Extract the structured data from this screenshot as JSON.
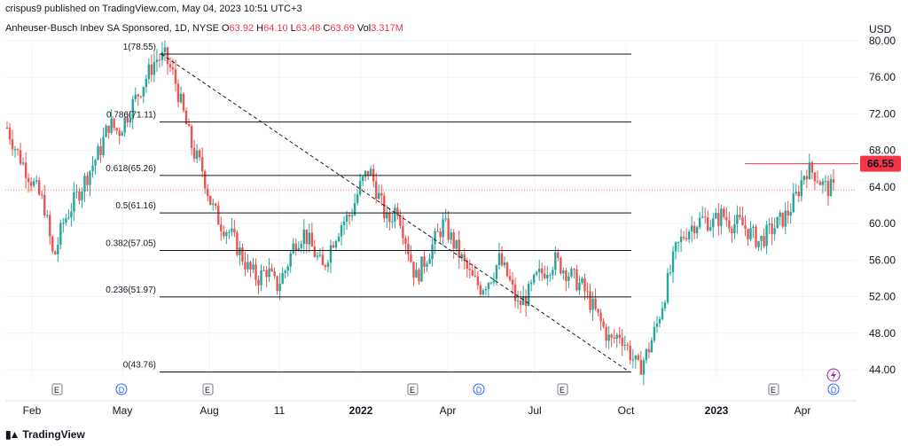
{
  "header": {
    "published": "crispus9 published on TradingView.com, May 04, 2023 10:51 UTC+3",
    "symbol": "Anheuser-Busch Inbev SA Sponsored, 1D, NYSE",
    "ohlc": [
      {
        "k": "O",
        "v": "63.92"
      },
      {
        "k": "H",
        "v": "64.10"
      },
      {
        "k": "L",
        "v": "63.48"
      },
      {
        "k": "C",
        "v": "63.69"
      },
      {
        "k": "Vol",
        "v": "3.317M"
      }
    ],
    "currency": "USD"
  },
  "footer": {
    "brand": "TradingView"
  },
  "colors": {
    "up": "#26a69a",
    "down": "#ef5350",
    "marker": "#f23645",
    "grid": "#f0f3fa"
  },
  "chart_data": {
    "type": "candlestick",
    "y_ticks": [
      80,
      76,
      72,
      68,
      64,
      60,
      56,
      52,
      48,
      44
    ],
    "y_tick_labels": [
      "80.00",
      "76.00",
      "72.00",
      "68.00",
      "64.00",
      "60.00",
      "56.00",
      "52.00",
      "48.00",
      "44.00"
    ],
    "ylim": [
      43.0,
      81.0
    ],
    "x_labels": [
      "Feb",
      "May",
      "Aug",
      "11",
      "2022",
      "Apr",
      "Jul",
      "Oct",
      "2023",
      "Apr"
    ],
    "x_label_bold": [
      "2022",
      "2023"
    ],
    "fib_levels": [
      {
        "label": "1(78.55)",
        "value": 78.55
      },
      {
        "label": "0.786(71.11)",
        "value": 71.11
      },
      {
        "label": "0.618(65.26)",
        "value": 65.26
      },
      {
        "label": "0.5(61.16)",
        "value": 61.16
      },
      {
        "label": "0.382(57.05)",
        "value": 57.05
      },
      {
        "label": "0.236(51.97)",
        "value": 51.97
      },
      {
        "label": "0(43.76)",
        "value": 43.76
      }
    ],
    "trend_line": {
      "from": 78.55,
      "to": 43.76
    },
    "horizontal_line": {
      "value": 66.55,
      "label": "66.55"
    },
    "last_price": 63.69,
    "events": [
      "E",
      "D",
      "E",
      "E",
      "D",
      "E",
      "E",
      "D"
    ],
    "price_path": [
      70.5,
      68,
      66,
      64,
      62,
      56,
      60,
      62,
      64,
      66,
      68,
      71,
      70,
      72,
      74,
      76,
      78,
      78.2,
      76,
      72,
      68,
      66,
      62,
      60,
      59,
      57,
      55,
      54,
      55,
      53,
      55,
      58,
      59,
      57,
      55,
      58,
      60,
      61,
      64,
      66,
      63,
      60,
      62,
      58,
      54,
      56,
      58,
      60,
      58,
      56,
      54,
      53,
      54,
      56,
      54,
      51,
      52,
      54,
      55,
      56,
      55,
      54,
      53,
      51,
      49,
      47,
      48,
      46,
      44,
      46,
      49,
      53,
      57,
      59,
      60,
      60.5,
      60,
      61,
      60,
      60,
      59,
      58,
      59,
      60,
      61,
      63,
      66,
      65.5,
      64,
      63.7
    ]
  }
}
